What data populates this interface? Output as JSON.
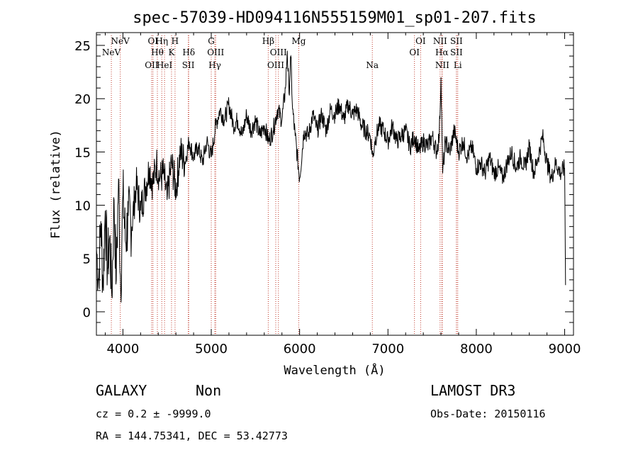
{
  "chart_data": {
    "type": "line",
    "title": "spec-57039-HD094116N555159M01_sp01-207.fits",
    "xlabel": "Wavelength (Å)",
    "ylabel": "Flux (relative)",
    "xlim": [
      3700,
      9100
    ],
    "ylim": [
      -2.2,
      26.2
    ],
    "xticks": [
      4000,
      5000,
      6000,
      7000,
      8000,
      9000
    ],
    "yticks": [
      0,
      5,
      10,
      15,
      20,
      25
    ],
    "series": [
      {
        "name": "spectrum",
        "x": [
          3700,
          3725,
          3750,
          3775,
          3800,
          3825,
          3850,
          3875,
          3900,
          3925,
          3950,
          3975,
          4000,
          4030,
          4060,
          4100,
          4150,
          4200,
          4250,
          4300,
          4340,
          4380,
          4420,
          4460,
          4500,
          4550,
          4600,
          4650,
          4700,
          4750,
          4800,
          4850,
          4900,
          4950,
          5000,
          5050,
          5100,
          5150,
          5200,
          5250,
          5300,
          5350,
          5400,
          5450,
          5500,
          5550,
          5600,
          5650,
          5700,
          5750,
          5800,
          5840,
          5860,
          5880,
          5900,
          5920,
          5950,
          6000,
          6050,
          6100,
          6150,
          6200,
          6250,
          6300,
          6350,
          6400,
          6450,
          6500,
          6550,
          6600,
          6650,
          6700,
          6750,
          6800,
          6830,
          6850,
          6900,
          6950,
          7000,
          7050,
          7100,
          7150,
          7200,
          7250,
          7300,
          7350,
          7400,
          7450,
          7500,
          7550,
          7580,
          7600,
          7620,
          7650,
          7700,
          7750,
          7800,
          7850,
          7900,
          7950,
          8000,
          8050,
          8100,
          8150,
          8200,
          8250,
          8300,
          8350,
          8400,
          8450,
          8500,
          8550,
          8600,
          8650,
          8700,
          8750,
          8800,
          8850,
          8900,
          8950,
          9000,
          9010
        ],
        "values": [
          6.0,
          3.0,
          8.5,
          2.5,
          9.5,
          4.0,
          7.0,
          1.5,
          10.5,
          3.0,
          12.5,
          2.0,
          11.0,
          6.5,
          9.0,
          8.0,
          12.0,
          9.5,
          11.5,
          13.5,
          12.0,
          14.0,
          12.5,
          13.0,
          10.5,
          14.0,
          11.5,
          15.0,
          14.0,
          16.0,
          14.5,
          15.5,
          14.0,
          16.0,
          14.5,
          17.5,
          19.0,
          18.0,
          19.5,
          17.5,
          18.0,
          16.5,
          18.5,
          17.0,
          18.0,
          16.5,
          17.5,
          16.0,
          17.0,
          19.0,
          18.0,
          21.0,
          24.5,
          20.5,
          24.0,
          19.0,
          16.5,
          12.5,
          17.0,
          16.5,
          18.5,
          17.0,
          18.5,
          17.0,
          19.0,
          18.5,
          19.5,
          18.0,
          19.5,
          18.5,
          19.0,
          17.5,
          17.0,
          16.5,
          14.5,
          16.0,
          17.5,
          17.0,
          16.0,
          17.5,
          16.0,
          16.5,
          17.0,
          15.5,
          16.5,
          15.0,
          16.0,
          15.5,
          16.5,
          15.0,
          16.5,
          22.0,
          13.0,
          16.0,
          15.0,
          17.0,
          15.0,
          16.0,
          14.5,
          15.5,
          13.5,
          14.0,
          13.0,
          14.5,
          13.0,
          13.5,
          12.5,
          14.0,
          15.0,
          13.5,
          14.5,
          13.5,
          15.5,
          13.0,
          14.5,
          16.5,
          14.0,
          12.5,
          14.0,
          13.0,
          13.5,
          2.5
        ]
      }
    ],
    "lines": [
      {
        "name": "NeV",
        "x": 3869,
        "row": 1
      },
      {
        "name": "NeV",
        "x": 3970,
        "row": 0
      },
      {
        "name": "OII",
        "x": 4325,
        "row": 2
      },
      {
        "name": "OI",
        "x": 4340,
        "row": 0
      },
      {
        "name": "Hθ",
        "x": 4390,
        "row": 1
      },
      {
        "name": "Hη",
        "x": 4440,
        "row": 0
      },
      {
        "name": "HeI",
        "x": 4471,
        "row": 2
      },
      {
        "name": "K",
        "x": 4550,
        "row": 1
      },
      {
        "name": "H",
        "x": 4590,
        "row": 0
      },
      {
        "name": "Hδ",
        "x": 4745,
        "row": 1
      },
      {
        "name": "SII",
        "x": 4740,
        "row": 2
      },
      {
        "name": "G",
        "x": 5000,
        "row": 0
      },
      {
        "name": "OIII",
        "x": 5050,
        "row": 1
      },
      {
        "name": "Hγ",
        "x": 5040,
        "row": 2
      },
      {
        "name": "Hβ",
        "x": 5645,
        "row": 0
      },
      {
        "name": "OIII",
        "x": 5760,
        "row": 1
      },
      {
        "name": "OIII",
        "x": 5730,
        "row": 2
      },
      {
        "name": "Mg",
        "x": 5990,
        "row": 0
      },
      {
        "name": "Na",
        "x": 6823,
        "row": 2
      },
      {
        "name": "OI",
        "x": 7300,
        "row": 1
      },
      {
        "name": "OI",
        "x": 7370,
        "row": 0
      },
      {
        "name": "NII",
        "x": 7590,
        "row": 0
      },
      {
        "name": "Hα",
        "x": 7610,
        "row": 1
      },
      {
        "name": "NII",
        "x": 7615,
        "row": 2
      },
      {
        "name": "SII",
        "x": 7775,
        "row": 0
      },
      {
        "name": "SII",
        "x": 7775,
        "row": 1
      },
      {
        "name": "Li",
        "x": 7790,
        "row": 2
      }
    ]
  },
  "info": {
    "class": "GALAXY",
    "subclass": "Non",
    "survey": "LAMOST DR3",
    "cz": "cz = 0.2 ± -9999.0",
    "obsdate": "Obs-Date: 20150116",
    "radec": "RA = 144.75341, DEC =  53.42773"
  },
  "colors": {
    "spectrum": "#000000",
    "line_marker": "#c0392b"
  }
}
